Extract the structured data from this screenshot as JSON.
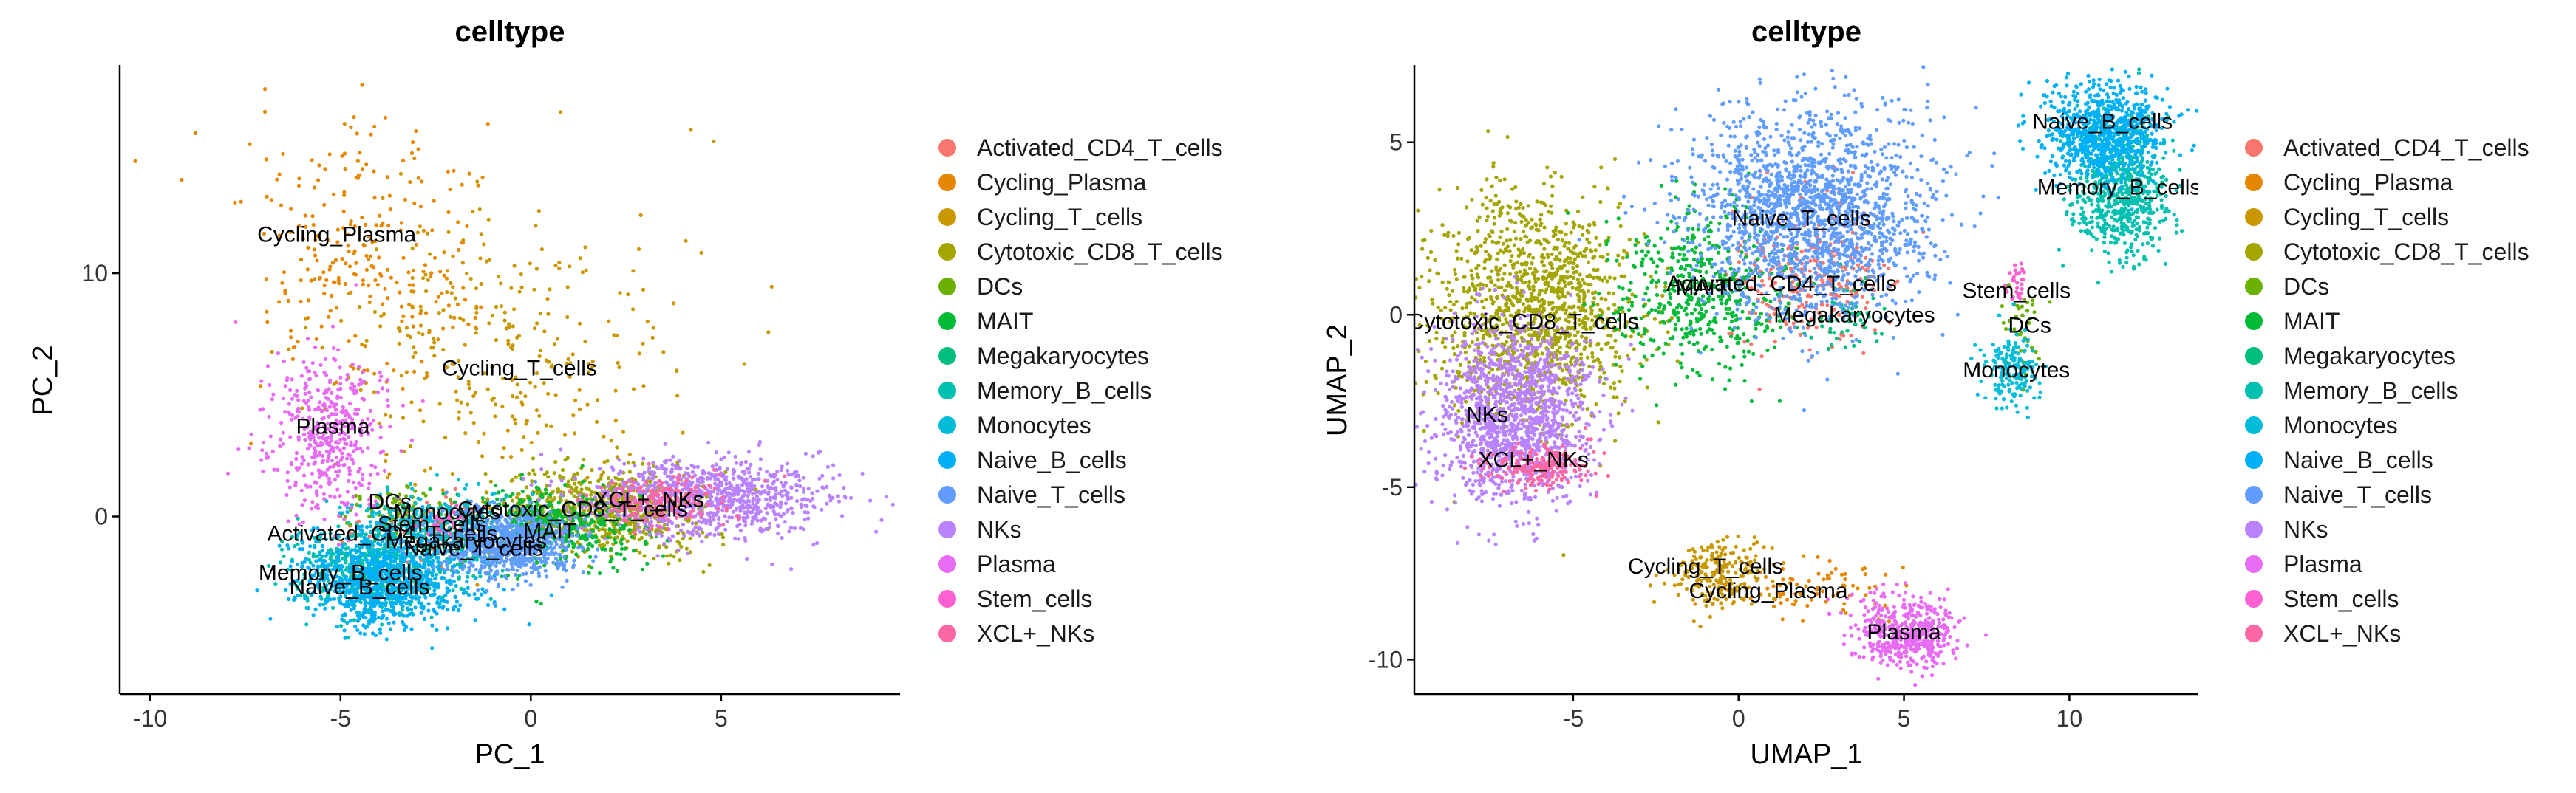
{
  "chart_data": [
    {
      "type": "scatter",
      "title": "celltype",
      "xlabel": "PC_1",
      "ylabel": "PC_2",
      "xlim": [
        -10.8,
        9.7
      ],
      "ylim": [
        -7.3,
        18.5
      ],
      "xticks": [
        -10,
        -5,
        0,
        5
      ],
      "yticks": [
        0,
        10
      ],
      "grid": false,
      "legend_placement": "right",
      "legend_title": "",
      "clusters": [
        {
          "name": "Activated_CD4_T_cells",
          "label": "Activated_CD4_T_cells",
          "label_pos": [
            -3.9,
            -0.7
          ],
          "center": [
            -2.6,
            -0.6
          ],
          "spread": [
            1.0,
            0.7
          ],
          "count": 120
        },
        {
          "name": "Cycling_Plasma",
          "label": "Cycling_Plasma",
          "label_pos": [
            -5.1,
            11.6
          ],
          "center": [
            -4.4,
            10.8
          ],
          "spread": [
            1.5,
            2.6
          ],
          "count": 260
        },
        {
          "name": "Cycling_T_cells",
          "label": "Cycling_T_cells",
          "label_pos": [
            -0.3,
            6.1
          ],
          "center": [
            -0.9,
            6.5
          ],
          "spread": [
            2.3,
            3.2
          ],
          "count": 320
        },
        {
          "name": "Cytotoxic_CD8_T_cells",
          "label": "Cytotoxic_CD8_T_cells",
          "label_pos": [
            1.1,
            0.3
          ],
          "center": [
            1.9,
            0.3
          ],
          "spread": [
            1.3,
            0.9
          ],
          "count": 700
        },
        {
          "name": "DCs",
          "label": "DCs",
          "label_pos": [
            -3.7,
            0.6
          ],
          "center": [
            -3.4,
            0.2
          ],
          "spread": [
            0.7,
            0.5
          ],
          "count": 90
        },
        {
          "name": "MAIT",
          "label": "MAIT",
          "label_pos": [
            0.5,
            -0.6
          ],
          "center": [
            0.6,
            -0.3
          ],
          "spread": [
            1.2,
            0.8
          ],
          "count": 450
        },
        {
          "name": "Megakaryocytes",
          "label": "Megakaryocytes",
          "label_pos": [
            -1.7,
            -1.0
          ],
          "center": [
            -1.8,
            -1.1
          ],
          "spread": [
            0.9,
            0.7
          ],
          "count": 140
        },
        {
          "name": "Memory_B_cells",
          "label": "Memory_B_cells",
          "label_pos": [
            -5.0,
            -2.3
          ],
          "center": [
            -4.1,
            -2.2
          ],
          "spread": [
            1.1,
            0.9
          ],
          "count": 600
        },
        {
          "name": "Monocytes",
          "label": "Monocytes",
          "label_pos": [
            -2.2,
            0.2
          ],
          "center": [
            -2.6,
            -0.2
          ],
          "spread": [
            0.9,
            0.6
          ],
          "count": 260
        },
        {
          "name": "Naive_B_cells",
          "label": "Naive_B_cells",
          "label_pos": [
            -4.5,
            -2.9
          ],
          "center": [
            -3.8,
            -2.6
          ],
          "spread": [
            1.1,
            1.0
          ],
          "count": 900
        },
        {
          "name": "Naive_T_cells",
          "label": "Naive_T_cells",
          "label_pos": [
            -1.5,
            -1.3
          ],
          "center": [
            -0.6,
            -1.1
          ],
          "spread": [
            0.9,
            0.7
          ],
          "count": 750
        },
        {
          "name": "NKs",
          "label": "NKs",
          "label_pos": [
            4.0,
            0.7
          ],
          "center": [
            4.6,
            0.8
          ],
          "spread": [
            1.6,
            0.8
          ],
          "count": 900
        },
        {
          "name": "Plasma",
          "label": "Plasma",
          "label_pos": [
            -5.2,
            3.7
          ],
          "center": [
            -5.3,
            3.4
          ],
          "spread": [
            0.8,
            1.7
          ],
          "count": 450
        },
        {
          "name": "Stem_cells",
          "label": "Stem_cells",
          "label_pos": [
            -2.6,
            -0.3
          ],
          "center": [
            -2.3,
            -0.3
          ],
          "spread": [
            0.3,
            0.3
          ],
          "count": 25
        },
        {
          "name": "XCL+_NKs",
          "label": "XCL+_NKs",
          "label_pos": [
            3.1,
            0.7
          ],
          "center": [
            3.2,
            0.6
          ],
          "spread": [
            0.9,
            0.5
          ],
          "count": 200
        }
      ]
    },
    {
      "type": "scatter",
      "title": "celltype",
      "xlabel": "UMAP_1",
      "ylabel": "UMAP_2",
      "xlim": [
        -9.8,
        13.9
      ],
      "ylim": [
        -11.0,
        7.2
      ],
      "xticks": [
        -5,
        0,
        5,
        10
      ],
      "yticks": [
        -10,
        -5,
        0,
        5
      ],
      "grid": false,
      "legend_placement": "right",
      "legend_title": "",
      "clusters": [
        {
          "name": "Activated_CD4_T_cells",
          "label": "Activated_CD4_T_cells",
          "label_pos": [
            1.3,
            0.9
          ],
          "center": [
            2.0,
            1.2
          ],
          "spread": [
            1.2,
            1.0
          ],
          "count": 300
        },
        {
          "name": "Cycling_Plasma",
          "label": "Cycling_Plasma",
          "label_pos": [
            0.9,
            -8.0
          ],
          "center": [
            2.0,
            -8.0
          ],
          "spread": [
            1.2,
            0.4
          ],
          "count": 80
        },
        {
          "name": "Cycling_T_cells",
          "label": "Cycling_T_cells",
          "label_pos": [
            -1.0,
            -7.3
          ],
          "center": [
            -0.6,
            -7.5
          ],
          "spread": [
            0.7,
            0.5
          ],
          "count": 220
        },
        {
          "name": "Cytotoxic_CD8_T_cells",
          "label": "Cytotoxic_CD8_T_cells",
          "label_pos": [
            -6.5,
            -0.2
          ],
          "center": [
            -6.2,
            0.2
          ],
          "spread": [
            1.5,
            1.6
          ],
          "count": 1300
        },
        {
          "name": "DCs",
          "label": "DCs",
          "label_pos": [
            8.8,
            -0.3
          ],
          "center": [
            8.6,
            -0.5
          ],
          "spread": [
            0.3,
            0.6
          ],
          "count": 40
        },
        {
          "name": "MAIT",
          "label": "MAIT",
          "label_pos": [
            -1.1,
            0.8
          ],
          "center": [
            -1.2,
            0.6
          ],
          "spread": [
            1.4,
            1.2
          ],
          "count": 500
        },
        {
          "name": "Megakaryocytes",
          "label": "Megakaryocytes",
          "label_pos": [
            3.5,
            0.0
          ],
          "center": [
            3.3,
            0.0
          ],
          "spread": [
            0.6,
            0.5
          ],
          "count": 60
        },
        {
          "name": "Memory_B_cells",
          "label": "Memory_B_cells",
          "label_pos": [
            11.5,
            3.7
          ],
          "center": [
            11.5,
            3.7
          ],
          "spread": [
            0.7,
            1.0
          ],
          "count": 700
        },
        {
          "name": "Monocytes",
          "label": "Monocytes",
          "label_pos": [
            8.4,
            -1.6
          ],
          "center": [
            8.3,
            -1.6
          ],
          "spread": [
            0.4,
            0.5
          ],
          "count": 180
        },
        {
          "name": "Naive_B_cells",
          "label": "Naive_B_cells",
          "label_pos": [
            11.0,
            5.6
          ],
          "center": [
            11.0,
            5.3
          ],
          "spread": [
            0.9,
            0.7
          ],
          "count": 800
        },
        {
          "name": "Naive_T_cells",
          "label": "Naive_T_cells",
          "label_pos": [
            1.9,
            2.8
          ],
          "center": [
            2.2,
            3.0
          ],
          "spread": [
            1.8,
            1.5
          ],
          "count": 1800
        },
        {
          "name": "NKs",
          "label": "NKs",
          "label_pos": [
            -7.6,
            -2.9
          ],
          "center": [
            -6.8,
            -2.9
          ],
          "spread": [
            1.2,
            1.3
          ],
          "count": 1400
        },
        {
          "name": "Plasma",
          "label": "Plasma",
          "label_pos": [
            5.0,
            -9.2
          ],
          "center": [
            5.1,
            -9.2
          ],
          "spread": [
            0.8,
            0.5
          ],
          "count": 500
        },
        {
          "name": "Stem_cells",
          "label": "Stem_cells",
          "label_pos": [
            8.4,
            0.7
          ],
          "center": [
            8.4,
            0.9
          ],
          "spread": [
            0.2,
            0.3
          ],
          "count": 30
        },
        {
          "name": "XCL+_NKs",
          "label": "XCL+_NKs",
          "label_pos": [
            -6.2,
            -4.2
          ],
          "center": [
            -6.0,
            -4.4
          ],
          "spread": [
            0.8,
            0.3
          ],
          "count": 200
        }
      ]
    }
  ],
  "legend": {
    "entries": [
      {
        "name": "Activated_CD4_T_cells",
        "color": "#F8766D"
      },
      {
        "name": "Cycling_Plasma",
        "color": "#E58700"
      },
      {
        "name": "Cycling_T_cells",
        "color": "#C99800"
      },
      {
        "name": "Cytotoxic_CD8_T_cells",
        "color": "#A3A500"
      },
      {
        "name": "DCs",
        "color": "#6BB100"
      },
      {
        "name": "MAIT",
        "color": "#00BA38"
      },
      {
        "name": "Megakaryocytes",
        "color": "#00BF7D"
      },
      {
        "name": "Memory_B_cells",
        "color": "#00C0AF"
      },
      {
        "name": "Monocytes",
        "color": "#00BCD8"
      },
      {
        "name": "Naive_B_cells",
        "color": "#00B0F6"
      },
      {
        "name": "Naive_T_cells",
        "color": "#619CFF"
      },
      {
        "name": "NKs",
        "color": "#B983FF"
      },
      {
        "name": "Plasma",
        "color": "#E76BF3"
      },
      {
        "name": "Stem_cells",
        "color": "#FD61D1"
      },
      {
        "name": "XCL+_NKs",
        "color": "#FF67A4"
      }
    ]
  }
}
